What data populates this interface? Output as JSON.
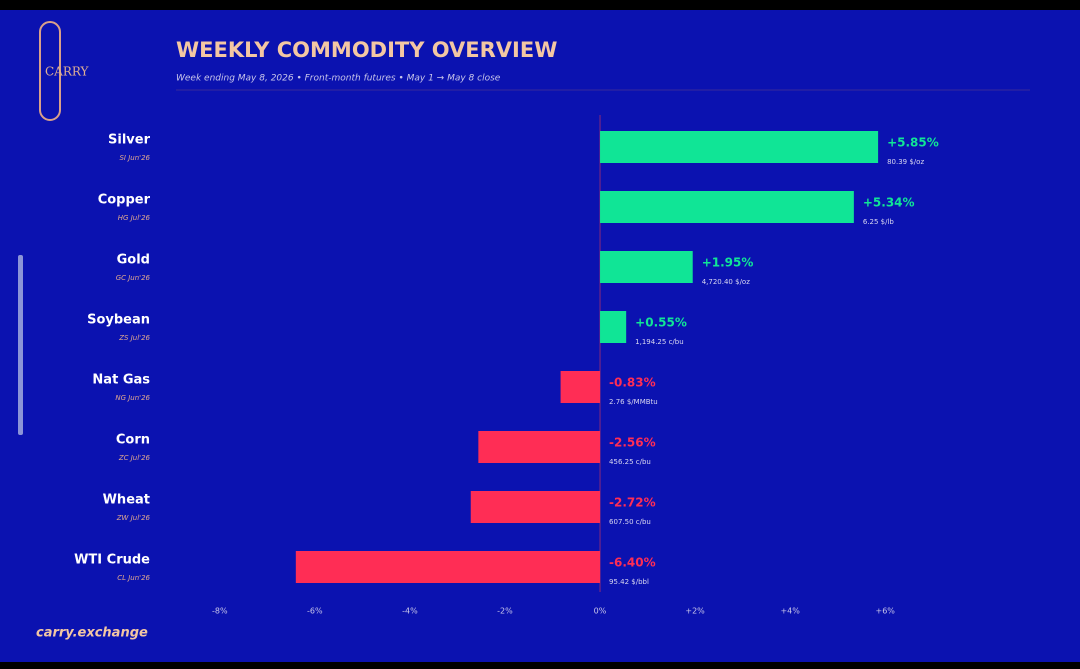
{
  "chart_data": {
    "type": "bar",
    "orientation": "horizontal",
    "logo": "CARRY",
    "title": "WEEKLY COMMODITY OVERVIEW",
    "subtitle": "Week ending May 8, 2026  •  Front-month futures  •  May 1 → May 8 close",
    "footer": "carry.exchange",
    "categories": [
      "Silver",
      "Copper",
      "Gold",
      "Soybean",
      "Nat Gas",
      "Corn",
      "Wheat",
      "WTI Crude"
    ],
    "contracts": [
      "SI Jun'26",
      "HG Jul'26",
      "GC Jun'26",
      "ZS Jul'26",
      "NG Jun'26",
      "ZC Jul'26",
      "ZW Jul'26",
      "CL Jun'26"
    ],
    "values": [
      5.85,
      5.34,
      1.95,
      0.55,
      -0.83,
      -2.56,
      -2.72,
      -6.4
    ],
    "value_labels": [
      "+5.85%",
      "+5.34%",
      "+1.95%",
      "+0.55%",
      "-0.83%",
      "-2.56%",
      "-2.72%",
      "-6.40%"
    ],
    "prices": [
      "80.39 $/oz",
      "6.25 $/lb",
      "4,720.40 $/oz",
      "1,194.25 c/bu",
      "2.76 $/MMBtu",
      "456.25 c/bu",
      "607.50 c/bu",
      "95.42 $/bbl"
    ],
    "xlim": [
      -8.5,
      6.5
    ],
    "xticks": [
      {
        "value": -8,
        "label": "-8%"
      },
      {
        "value": -6,
        "label": "-6%"
      },
      {
        "value": -4,
        "label": "-4%"
      },
      {
        "value": -2,
        "label": "-2%"
      },
      {
        "value": 0,
        "label": "0%"
      },
      {
        "value": 2,
        "label": "+2%"
      },
      {
        "value": 4,
        "label": "+4%"
      },
      {
        "value": 6,
        "label": "+6%"
      }
    ],
    "positive_color": "#10e596",
    "negative_color": "#ff2d55"
  }
}
